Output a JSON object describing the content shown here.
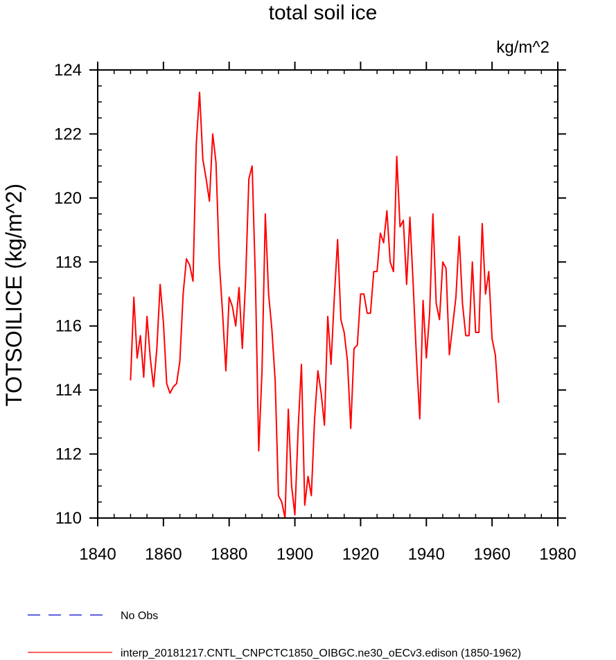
{
  "chart_data": {
    "type": "line",
    "title": "total soil ice",
    "units": "kg/m^2",
    "ylabel": "TOTSOILICE  (kg/m^2)",
    "xlabel": "",
    "xlim": [
      1840,
      1980
    ],
    "ylim": [
      110,
      124
    ],
    "x_ticks": [
      1840,
      1860,
      1880,
      1900,
      1920,
      1940,
      1960,
      1980
    ],
    "y_ticks": [
      110,
      112,
      114,
      116,
      118,
      120,
      122,
      124
    ],
    "x_tick_labels": [
      "1840",
      "1860",
      "1880",
      "1900",
      "1920",
      "1940",
      "1960",
      "1980"
    ],
    "y_tick_labels": [
      "110",
      "112",
      "114",
      "116",
      "118",
      "120",
      "122",
      "124"
    ],
    "x_minor_step": 5,
    "y_minor_step": 0.5,
    "grid": false,
    "legend_position": "bottom-left",
    "series": [
      {
        "name": "No Obs",
        "color": "#0000cc",
        "dash": "dashed",
        "x": [],
        "values": []
      },
      {
        "name": "interp_20181217.CNTL_CNPCTC1850_OIBGC.ne30_oECv3.edison (1850-1962)",
        "color": "#ff0000",
        "dash": "solid",
        "x": [
          1850,
          1851,
          1852,
          1853,
          1854,
          1855,
          1856,
          1857,
          1858,
          1859,
          1860,
          1861,
          1862,
          1863,
          1864,
          1865,
          1866,
          1867,
          1868,
          1869,
          1870,
          1871,
          1872,
          1873,
          1874,
          1875,
          1876,
          1877,
          1878,
          1879,
          1880,
          1881,
          1882,
          1883,
          1884,
          1885,
          1886,
          1887,
          1888,
          1889,
          1890,
          1891,
          1892,
          1893,
          1894,
          1895,
          1896,
          1897,
          1898,
          1899,
          1900,
          1901,
          1902,
          1903,
          1904,
          1905,
          1906,
          1907,
          1908,
          1909,
          1910,
          1911,
          1912,
          1913,
          1914,
          1915,
          1916,
          1917,
          1918,
          1919,
          1920,
          1921,
          1922,
          1923,
          1924,
          1925,
          1926,
          1927,
          1928,
          1929,
          1930,
          1931,
          1932,
          1933,
          1934,
          1935,
          1936,
          1937,
          1938,
          1939,
          1940,
          1941,
          1942,
          1943,
          1944,
          1945,
          1946,
          1947,
          1948,
          1949,
          1950,
          1951,
          1952,
          1953,
          1954,
          1955,
          1956,
          1957,
          1958,
          1959,
          1960,
          1961,
          1962
        ],
        "values": [
          114.3,
          116.9,
          115.0,
          115.7,
          114.4,
          116.3,
          115.0,
          114.1,
          115.3,
          117.3,
          116.1,
          114.2,
          113.9,
          114.1,
          114.2,
          114.9,
          117.0,
          118.1,
          117.9,
          117.4,
          121.7,
          123.3,
          121.2,
          120.6,
          119.9,
          122.0,
          121.1,
          118.0,
          116.4,
          114.6,
          116.9,
          116.6,
          116.0,
          117.2,
          115.3,
          117.4,
          120.6,
          121.0,
          117.4,
          112.1,
          114.6,
          119.5,
          117.0,
          115.9,
          114.3,
          110.7,
          110.5,
          110.0,
          113.4,
          111.0,
          110.1,
          112.8,
          114.8,
          110.4,
          111.3,
          110.7,
          113.1,
          114.6,
          113.9,
          112.9,
          116.3,
          114.8,
          116.9,
          118.7,
          116.2,
          115.8,
          114.9,
          112.8,
          115.3,
          115.4,
          117.0,
          117.0,
          116.4,
          116.4,
          117.7,
          117.7,
          118.9,
          118.6,
          119.6,
          118.0,
          117.7,
          121.3,
          119.1,
          119.3,
          117.3,
          119.4,
          117.3,
          115.0,
          113.1,
          116.8,
          115.0,
          116.4,
          119.5,
          116.7,
          116.2,
          118.0,
          117.8,
          115.1,
          116.0,
          116.9,
          118.8,
          116.7,
          115.7,
          115.7,
          118.0,
          115.8,
          115.8,
          119.2,
          117.0,
          117.7,
          115.6,
          115.1,
          113.6
        ]
      }
    ]
  }
}
